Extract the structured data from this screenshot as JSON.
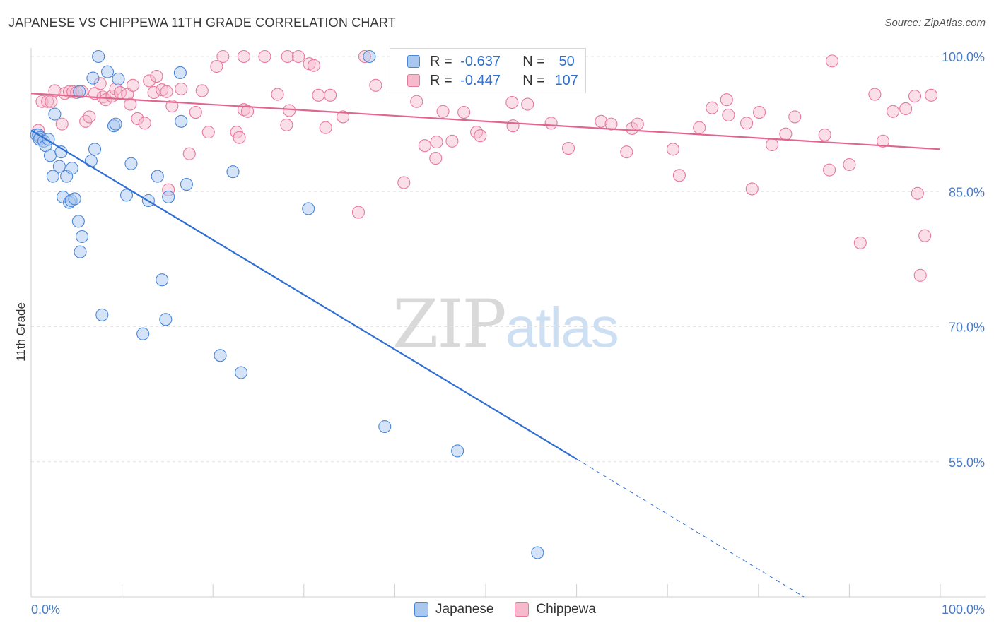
{
  "title": "JAPANESE VS CHIPPEWA 11TH GRADE CORRELATION CHART",
  "source": "Source: ZipAtlas.com",
  "watermark": {
    "zip": "ZIP",
    "atlas": "atlas"
  },
  "colors": {
    "japanese_fill": "#a9c8f0",
    "japanese_stroke": "#4a86d8",
    "japanese_line": "#2e6fd1",
    "chippewa_fill": "#f7b9cc",
    "chippewa_stroke": "#e8799c",
    "chippewa_line": "#e0668f",
    "tick_label": "#4a7cc4",
    "grid": "#e3e3e3"
  },
  "legend": {
    "rows": [
      {
        "r_label": "R = ",
        "r_value": "-0.637",
        "n_label": "N = ",
        "n_value": "50"
      },
      {
        "r_label": "R = ",
        "r_value": "-0.447",
        "n_label": "N = ",
        "n_value": "107"
      }
    ]
  },
  "bottom_legend": [
    "Japanese",
    "Chippewa"
  ],
  "chart_data": {
    "type": "scatter",
    "ylabel": "11th Grade",
    "xlim": [
      0,
      100
    ],
    "ylim": [
      40,
      100
    ],
    "x_tick_labels": [
      "0.0%",
      "100.0%"
    ],
    "y_ticks": [
      100,
      85,
      70,
      55
    ],
    "y_tick_labels": [
      "100.0%",
      "85.0%",
      "70.0%",
      "55.0%"
    ],
    "grid": "horizontal dashed",
    "series": [
      {
        "name": "Japanese",
        "r": -0.637,
        "n": 50,
        "trend": {
          "x0": 0,
          "y0": 91.8,
          "x1": 60,
          "y1": 55.3,
          "dash_to_x": 85,
          "dash_to_y": 40
        },
        "points": [
          [
            0.6,
            91.3
          ],
          [
            0.8,
            91.3
          ],
          [
            1.0,
            91.0
          ],
          [
            0.9,
            90.8
          ],
          [
            1.4,
            90.6
          ],
          [
            1.6,
            90.1
          ],
          [
            1.9,
            90.8
          ],
          [
            2.1,
            89.0
          ],
          [
            2.6,
            93.6
          ],
          [
            3.3,
            89.4
          ],
          [
            2.4,
            86.7
          ],
          [
            3.1,
            87.8
          ],
          [
            3.9,
            86.7
          ],
          [
            4.5,
            87.6
          ],
          [
            3.5,
            84.4
          ],
          [
            4.2,
            83.8
          ],
          [
            4.4,
            84.0
          ],
          [
            4.8,
            84.2
          ],
          [
            5.2,
            81.7
          ],
          [
            5.6,
            80.0
          ],
          [
            5.4,
            78.3
          ],
          [
            6.6,
            88.4
          ],
          [
            7.0,
            89.7
          ],
          [
            6.8,
            97.6
          ],
          [
            7.4,
            100.0
          ],
          [
            8.4,
            98.3
          ],
          [
            9.1,
            92.3
          ],
          [
            9.3,
            92.5
          ],
          [
            9.6,
            97.5
          ],
          [
            10.5,
            84.6
          ],
          [
            11.0,
            88.1
          ],
          [
            12.9,
            84.0
          ],
          [
            13.9,
            86.7
          ],
          [
            14.4,
            75.2
          ],
          [
            14.8,
            70.8
          ],
          [
            15.1,
            84.4
          ],
          [
            16.4,
            98.2
          ],
          [
            16.5,
            92.8
          ],
          [
            17.1,
            85.8
          ],
          [
            12.3,
            69.2
          ],
          [
            7.8,
            71.3
          ],
          [
            20.8,
            66.8
          ],
          [
            22.2,
            87.2
          ],
          [
            23.1,
            64.9
          ],
          [
            30.5,
            83.1
          ],
          [
            37.2,
            100.0
          ],
          [
            38.9,
            58.9
          ],
          [
            46.9,
            56.2
          ],
          [
            55.7,
            44.9
          ],
          [
            5.3,
            96.1
          ]
        ]
      },
      {
        "name": "Chippewa",
        "r": -0.447,
        "n": 107,
        "trend": {
          "x0": 0,
          "y0": 95.9,
          "x1": 100,
          "y1": 89.7
        },
        "points": [
          [
            0.8,
            91.8
          ],
          [
            1.2,
            95.0
          ],
          [
            1.8,
            95.0
          ],
          [
            2.2,
            95.0
          ],
          [
            2.6,
            96.2
          ],
          [
            3.4,
            92.5
          ],
          [
            3.7,
            95.9
          ],
          [
            4.2,
            96.1
          ],
          [
            4.6,
            96.1
          ],
          [
            5.0,
            96.0
          ],
          [
            5.6,
            96.1
          ],
          [
            6.0,
            92.8
          ],
          [
            6.4,
            93.3
          ],
          [
            7.0,
            95.9
          ],
          [
            7.6,
            97.0
          ],
          [
            7.9,
            95.5
          ],
          [
            8.2,
            95.2
          ],
          [
            8.9,
            95.6
          ],
          [
            9.3,
            96.4
          ],
          [
            9.8,
            96.0
          ],
          [
            10.6,
            95.8
          ],
          [
            10.9,
            94.7
          ],
          [
            11.2,
            96.8
          ],
          [
            11.7,
            93.1
          ],
          [
            12.5,
            92.6
          ],
          [
            13.0,
            97.3
          ],
          [
            13.5,
            96.0
          ],
          [
            13.8,
            97.8
          ],
          [
            14.4,
            96.3
          ],
          [
            14.9,
            96.1
          ],
          [
            15.5,
            94.5
          ],
          [
            15.1,
            85.2
          ],
          [
            16.5,
            96.4
          ],
          [
            17.4,
            89.2
          ],
          [
            18.1,
            93.8
          ],
          [
            18.8,
            96.2
          ],
          [
            19.5,
            91.6
          ],
          [
            20.4,
            98.9
          ],
          [
            21.1,
            100.0
          ],
          [
            22.6,
            91.6
          ],
          [
            22.9,
            91.0
          ],
          [
            23.4,
            94.1
          ],
          [
            23.8,
            93.9
          ],
          [
            23.4,
            100.0
          ],
          [
            25.7,
            100.0
          ],
          [
            27.1,
            95.8
          ],
          [
            28.1,
            92.4
          ],
          [
            28.4,
            94.0
          ],
          [
            28.2,
            100.0
          ],
          [
            29.4,
            100.0
          ],
          [
            30.6,
            99.2
          ],
          [
            31.1,
            99.0
          ],
          [
            31.6,
            95.7
          ],
          [
            32.4,
            92.1
          ],
          [
            32.9,
            95.7
          ],
          [
            34.3,
            93.3
          ],
          [
            36.0,
            82.7
          ],
          [
            36.7,
            100.0
          ],
          [
            37.9,
            96.8
          ],
          [
            41.0,
            86.0
          ],
          [
            42.4,
            95.0
          ],
          [
            43.3,
            90.1
          ],
          [
            44.5,
            88.7
          ],
          [
            44.6,
            90.5
          ],
          [
            45.3,
            93.9
          ],
          [
            46.3,
            90.6
          ],
          [
            47.6,
            93.8
          ],
          [
            49.0,
            91.6
          ],
          [
            49.4,
            91.2
          ],
          [
            51.2,
            96.8
          ],
          [
            52.9,
            94.9
          ],
          [
            53.0,
            92.3
          ],
          [
            54.6,
            94.7
          ],
          [
            55.3,
            96.7
          ],
          [
            57.2,
            92.6
          ],
          [
            59.1,
            89.8
          ],
          [
            62.7,
            92.8
          ],
          [
            63.8,
            92.5
          ],
          [
            65.5,
            89.4
          ],
          [
            66.1,
            92.0
          ],
          [
            66.7,
            92.5
          ],
          [
            70.6,
            89.7
          ],
          [
            71.3,
            86.8
          ],
          [
            73.5,
            92.1
          ],
          [
            74.9,
            94.3
          ],
          [
            76.5,
            95.2
          ],
          [
            76.7,
            93.5
          ],
          [
            78.7,
            92.6
          ],
          [
            79.3,
            85.3
          ],
          [
            80.1,
            93.8
          ],
          [
            81.5,
            90.2
          ],
          [
            83.0,
            91.4
          ],
          [
            84.0,
            93.3
          ],
          [
            87.3,
            91.3
          ],
          [
            87.8,
            87.4
          ],
          [
            88.1,
            99.5
          ],
          [
            90.0,
            88.0
          ],
          [
            91.2,
            79.3
          ],
          [
            92.8,
            95.8
          ],
          [
            93.7,
            90.6
          ],
          [
            94.8,
            93.9
          ],
          [
            96.2,
            94.2
          ],
          [
            97.2,
            95.6
          ],
          [
            97.5,
            84.8
          ],
          [
            97.8,
            75.7
          ],
          [
            98.3,
            80.1
          ],
          [
            99.0,
            95.7
          ]
        ]
      }
    ]
  }
}
